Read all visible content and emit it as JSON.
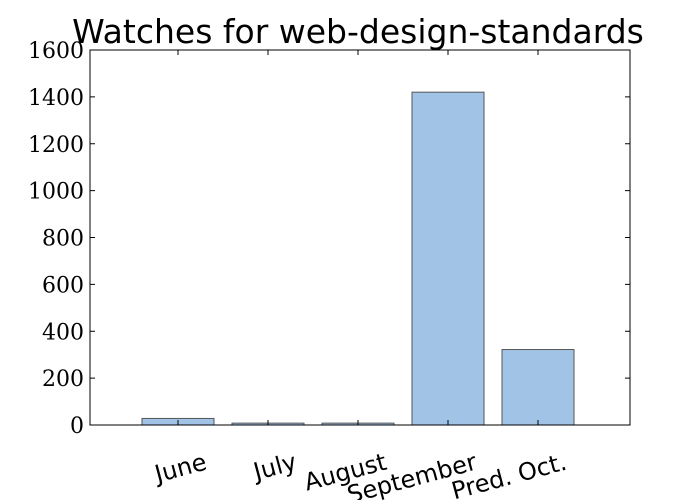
{
  "chart_data": {
    "type": "bar",
    "title": "Watches for web-design-standards",
    "xlabel": "",
    "ylabel": "",
    "categories": [
      "June",
      "July",
      "August",
      "September",
      "Pred. Oct."
    ],
    "values": [
      28,
      8,
      8,
      1420,
      322
    ],
    "ylim": [
      0,
      1600
    ],
    "yticks": [
      "0",
      "200",
      "400",
      "600",
      "800",
      "1000",
      "1200",
      "1400",
      "1600"
    ],
    "grid": false,
    "bar_color": "#a1c4e6",
    "bar_edge_color": "#555555"
  }
}
